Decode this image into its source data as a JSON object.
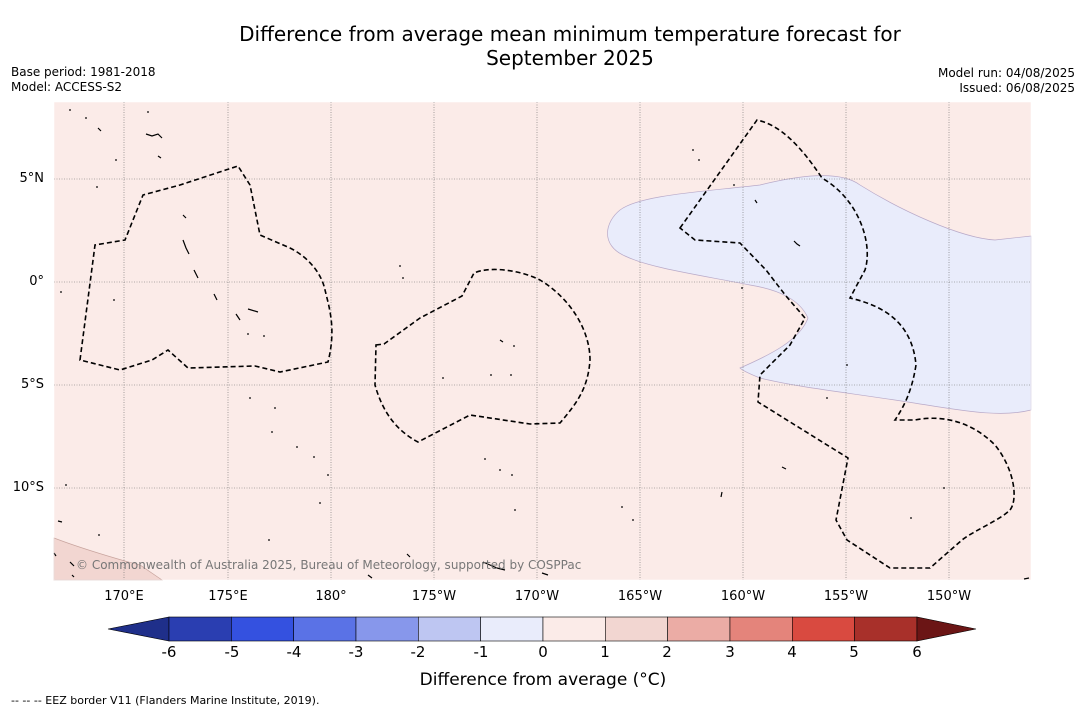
{
  "title": {
    "line1": "Difference from average mean minimum temperature forecast for",
    "line2": "September 2025"
  },
  "meta_left": {
    "base_period": "Base period: 1981-2018",
    "model": "Model: ACCESS-S2"
  },
  "meta_right": {
    "model_run": "Model run: 04/08/2025",
    "issued": "Issued: 06/08/2025"
  },
  "map": {
    "longitude_labels": [
      "170°E",
      "175°E",
      "180°",
      "175°W",
      "170°W",
      "165°W",
      "160°W",
      "155°W",
      "150°W"
    ],
    "latitude_labels": [
      "5°N",
      "0°",
      "5°S",
      "10°S"
    ],
    "copyright": "© Commonwealth of Australia 2025, Bureau of Meteorology, supported by COSPPac",
    "colors": {
      "anomaly_0_to_1": "#fbebe8",
      "anomaly_minus1_to_0": "#e9ecfb",
      "anomaly_1_to_2": "#f2d6d1"
    }
  },
  "colorbar": {
    "tick_labels": [
      "-6",
      "-5",
      "-4",
      "-3",
      "-2",
      "-1",
      "0",
      "1",
      "2",
      "3",
      "4",
      "5",
      "6"
    ],
    "colors": [
      "#1f2f8a",
      "#2a3eb1",
      "#3451e0",
      "#5a72e6",
      "#8797eb",
      "#bec6f2",
      "#e9ecfb",
      "#fbebe8",
      "#f2d6d1",
      "#ebaca5",
      "#e4847b",
      "#d94a40",
      "#a8302a",
      "#6b1515"
    ],
    "label": "Difference from average (°C)"
  },
  "footnote": "--  --  -- EEZ border V11 (Flanders Marine Institute, 2019)."
}
